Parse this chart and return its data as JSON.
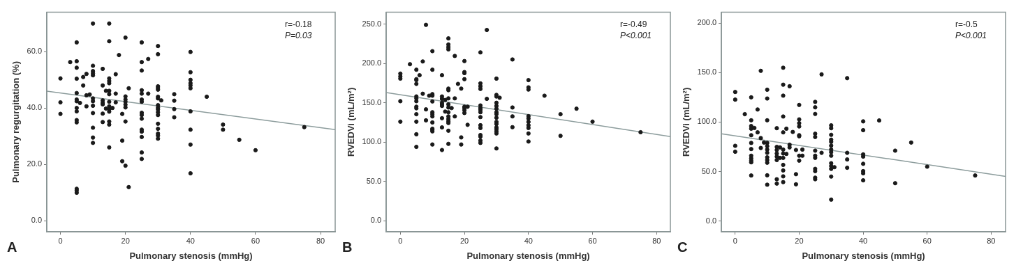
{
  "chart_data": [
    {
      "type": "scatter",
      "xlabel": "Pulmonary stenosis (mmHg)",
      "ylabel": "Pulmonary regurgitation (%)",
      "annotations": [
        "r=-0.18",
        "P=0.03",
        "A"
      ],
      "grid": false,
      "legend": false,
      "xlim": [
        -4.2,
        84.5
      ],
      "ylim": [
        -4,
        74
      ],
      "xticks": [
        0,
        20,
        40,
        60,
        80
      ],
      "yticks": [
        {
          "value": 0,
          "label": "0.0"
        },
        {
          "value": 20,
          "label": "20.0"
        },
        {
          "value": 40,
          "label": "40.0"
        },
        {
          "value": 60,
          "label": "60.0"
        }
      ],
      "series": [
        {
          "type": "scatter",
          "marker": "circle",
          "color": "#1a1a1a",
          "x": [
            0,
            0,
            0,
            3,
            5,
            5,
            5,
            5,
            5,
            5,
            5,
            5,
            5,
            5,
            5,
            5,
            5,
            5,
            6,
            7,
            7,
            8,
            8,
            8,
            9,
            10,
            10,
            10,
            10,
            10,
            10,
            10,
            10,
            10,
            10,
            10,
            10,
            13,
            13,
            13,
            13,
            13,
            13,
            13,
            14,
            14,
            15,
            15,
            15,
            15,
            15,
            15,
            15,
            15,
            15,
            15,
            15,
            15,
            15,
            15,
            16,
            17,
            17,
            17,
            18,
            19,
            19,
            19,
            20,
            20,
            20,
            20,
            20,
            20,
            20,
            20,
            21,
            21,
            25,
            25,
            25,
            25,
            25,
            25,
            25,
            25,
            25,
            25,
            25,
            25,
            25,
            25,
            25,
            27,
            27,
            30,
            30,
            30,
            30,
            30,
            30,
            30,
            30,
            30,
            30,
            30,
            30,
            30,
            30,
            30,
            30,
            30,
            31,
            35,
            35,
            35,
            35,
            40,
            40,
            40,
            40,
            40,
            40,
            40,
            40,
            40,
            40,
            45,
            50,
            50,
            55,
            60,
            75
          ],
          "values": [
            50.5,
            42,
            37.9,
            56.3,
            63.3,
            56.6,
            54.3,
            50.4,
            45.3,
            43,
            42.4,
            40,
            38.8,
            35.7,
            34.9,
            11.3,
            10.7,
            9.9,
            41.8,
            51,
            48,
            52.1,
            44.5,
            40.6,
            44.8,
            70,
            55,
            53.1,
            52.3,
            51.6,
            43.4,
            42.4,
            40.8,
            38.2,
            33,
            29.5,
            27.6,
            53.9,
            48,
            42.7,
            41.8,
            41.3,
            38,
            35,
            46.1,
            39.8,
            70,
            63.7,
            50.5,
            49.6,
            48.8,
            46.1,
            44.9,
            42.2,
            40.6,
            39.5,
            38.7,
            35.2,
            34.1,
            26,
            40,
            52,
            45.1,
            42,
            58.8,
            37.9,
            28.4,
            21.1,
            65,
            44.1,
            43,
            42.2,
            41.2,
            40.2,
            35.2,
            19.5,
            47,
            11.9,
            63.3,
            56.3,
            53.3,
            46.3,
            45.1,
            43,
            42.2,
            38.3,
            37.5,
            36.2,
            32.3,
            31.6,
            29.7,
            24.2,
            21.9,
            57.4,
            45.1,
            62,
            59.1,
            47.7,
            47.1,
            46.5,
            44,
            43.4,
            41,
            40.1,
            39.5,
            38.5,
            37.5,
            34.4,
            32.6,
            30.9,
            30.2,
            29.1,
            42.7,
            44.9,
            42.6,
            39.6,
            36.7,
            59.9,
            52.7,
            50,
            48.8,
            48,
            47,
            38.8,
            32.3,
            27,
            16.8,
            44,
            34.1,
            32.3,
            28.7,
            25,
            33.2
          ]
        },
        {
          "type": "line",
          "marker": "none",
          "color": "#8c9c9c",
          "x": [
            -4.2,
            84.5
          ],
          "values": [
            46,
            32.3
          ]
        }
      ]
    },
    {
      "type": "scatter",
      "xlabel": "Pulmonary stenosis (mmHg)",
      "ylabel": "RVEDVi (mL/m²)",
      "annotations": [
        "r=-0.49",
        "P<0.001",
        "B"
      ],
      "grid": false,
      "legend": false,
      "xlim": [
        -4.4,
        84.3
      ],
      "ylim": [
        -14,
        265
      ],
      "xticks": [
        0,
        20,
        40,
        60,
        80
      ],
      "yticks": [
        {
          "value": 0,
          "label": "0.0"
        },
        {
          "value": 50,
          "label": "50.0"
        },
        {
          "value": 100,
          "label": "100.0"
        },
        {
          "value": 150,
          "label": "150.0"
        },
        {
          "value": 200,
          "label": "200.0"
        },
        {
          "value": 250,
          "label": "250.0"
        }
      ],
      "series": [
        {
          "type": "scatter",
          "marker": "circle",
          "color": "#1a1a1a",
          "x": [
            0,
            0,
            0,
            0,
            0,
            3,
            5,
            5,
            5,
            5,
            5,
            5,
            5,
            5,
            5,
            5,
            5,
            5,
            5,
            6,
            7,
            7,
            8,
            8,
            8,
            9,
            10,
            10,
            10,
            10,
            10,
            10,
            10,
            10,
            10,
            10,
            10,
            10,
            10,
            13,
            13,
            13,
            13,
            13,
            13,
            13,
            13,
            13,
            14,
            14,
            15,
            15,
            15,
            15,
            15,
            15,
            15,
            15,
            15,
            15,
            15,
            15,
            15,
            15,
            15,
            15,
            16,
            17,
            17,
            17,
            18,
            19,
            19,
            19,
            20,
            20,
            20,
            20,
            20,
            20,
            20,
            20,
            21,
            21,
            25,
            25,
            25,
            25,
            25,
            25,
            25,
            25,
            25,
            25,
            25,
            25,
            25,
            25,
            25,
            27,
            27,
            30,
            30,
            30,
            30,
            30,
            30,
            30,
            30,
            30,
            30,
            30,
            30,
            30,
            30,
            30,
            30,
            31,
            35,
            35,
            35,
            35,
            40,
            40,
            40,
            40,
            40,
            40,
            40,
            40,
            40,
            40,
            45,
            50,
            50,
            55,
            60,
            75
          ],
          "values": [
            187,
            183.5,
            180.7,
            152,
            126,
            199,
            192,
            180,
            178.8,
            174,
            158,
            155.6,
            152,
            145,
            143,
            135.5,
            126,
            110,
            94,
            185,
            202.5,
            161.5,
            249,
            141.6,
            127.7,
            159,
            215.6,
            192,
            161,
            159,
            151.7,
            138,
            135.5,
            132.7,
            125,
            117,
            115.4,
            113.7,
            97,
            185,
            158,
            155,
            150,
            148,
            146,
            130.4,
            118.7,
            90,
            153.6,
            138.8,
            231.8,
            224,
            220.7,
            217.9,
            168,
            166,
            155.6,
            148,
            144,
            138,
            132.7,
            129.3,
            126.5,
            124.3,
            114.5,
            97.8,
            143.3,
            209.5,
            155.6,
            132.7,
            174,
            168,
            106,
            97,
            203,
            189,
            187.7,
            180,
            145,
            143.3,
            140.5,
            137,
            145,
            122,
            214,
            174.6,
            171,
            167.6,
            146.6,
            143.3,
            141,
            138,
            131.8,
            121.5,
            118,
            109,
            107,
            102,
            99,
            242.5,
            155,
            180.7,
            160,
            158,
            150,
            146,
            142.5,
            138,
            135.5,
            131,
            125.7,
            123,
            118.7,
            116.5,
            113.7,
            111,
            92,
            156.4,
            205,
            144,
            132.7,
            119,
            178.8,
            169.6,
            166.8,
            133,
            130,
            125.7,
            121.5,
            118,
            111,
            100.8,
            159,
            135.5,
            108,
            142.5,
            126,
            112.6
          ]
        },
        {
          "type": "line",
          "marker": "none",
          "color": "#8c9c9c",
          "x": [
            -4.4,
            84.3
          ],
          "values": [
            163,
            107
          ]
        }
      ]
    },
    {
      "type": "scatter",
      "xlabel": "Pulmonary stenosis (mmHg)",
      "ylabel": "RVEDVi (mL/m²)",
      "annotations": [
        "r=-0.5",
        "P<0.001",
        "C"
      ],
      "grid": false,
      "legend": false,
      "xlim": [
        -4.3,
        84.5
      ],
      "ylim": [
        -11,
        211
      ],
      "xticks": [
        0,
        20,
        40,
        60,
        80
      ],
      "yticks": [
        {
          "value": 0,
          "label": "0.0"
        },
        {
          "value": 50,
          "label": "50.0"
        },
        {
          "value": 100,
          "label": "100.0"
        },
        {
          "value": 150,
          "label": "150.0"
        },
        {
          "value": 200,
          "label": "200.0"
        }
      ],
      "series": [
        {
          "type": "scatter",
          "marker": "circle",
          "color": "#1a1a1a",
          "x": [
            0,
            0,
            0,
            0,
            3,
            5,
            5,
            5,
            5,
            5,
            5,
            5,
            5,
            5,
            5,
            5,
            5,
            6,
            7,
            7,
            8,
            8,
            8,
            9,
            10,
            10,
            10,
            10,
            10,
            10,
            10,
            10,
            10,
            10,
            10,
            10,
            13,
            13,
            13,
            13,
            13,
            13,
            13,
            13,
            14,
            14,
            15,
            15,
            15,
            15,
            15,
            15,
            15,
            15,
            15,
            15,
            15,
            15,
            16,
            16,
            17,
            17,
            17,
            18,
            19,
            19,
            19,
            20,
            20,
            20,
            20,
            20,
            20,
            20,
            20,
            21,
            21,
            25,
            25,
            25,
            25,
            25,
            25,
            25,
            25,
            25,
            25,
            25,
            25,
            27,
            27,
            30,
            30,
            30,
            30,
            30,
            30,
            30,
            30,
            30,
            30,
            30,
            30,
            30,
            30,
            31,
            35,
            35,
            35,
            35,
            40,
            40,
            40,
            40,
            40,
            40,
            40,
            40,
            45,
            50,
            50,
            55,
            60,
            75
          ],
          "values": [
            130.4,
            122.7,
            76,
            70,
            108,
            125,
            101.8,
            96,
            93.3,
            86.7,
            78.9,
            72.7,
            66,
            63.3,
            61,
            59.3,
            46,
            94,
            112.7,
            89.6,
            151.8,
            83.8,
            73.8,
            79.3,
            132.7,
            123.8,
            101.8,
            78.9,
            75.6,
            72.2,
            68.9,
            64.4,
            61.6,
            58.9,
            46.2,
            36.7,
            93.8,
            74.9,
            71.8,
            68.2,
            65.1,
            61.6,
            42.2,
            37.8,
            74.4,
            63.8,
            154.9,
            137.8,
            126.7,
            105.6,
            89.6,
            72.2,
            68.2,
            63.8,
            56.7,
            51.1,
            45.1,
            39.3,
            93.3,
            67.8,
            136.2,
            77.1,
            74.4,
            90,
            71.8,
            47.3,
            37.1,
            117.3,
            102.7,
            98.9,
            95.6,
            86.7,
            85.6,
            66,
            61,
            72.2,
            66,
            120.4,
            114.9,
            108.2,
            88.2,
            84.9,
            71.1,
            66,
            63.8,
            52.7,
            50.4,
            43.8,
            42.2,
            148.2,
            68.9,
            96.7,
            93.8,
            87.1,
            82.2,
            80,
            76.2,
            72.2,
            69.6,
            66,
            58.4,
            55.6,
            52.7,
            44.9,
            21.6,
            54.4,
            144.4,
            68.9,
            62.2,
            53.8,
            100.7,
            91.8,
            67.3,
            65.1,
            57.8,
            50.4,
            48.2,
            41.1,
            101.6,
            71.1,
            38.2,
            79.3,
            54.9,
            46
          ]
        },
        {
          "type": "line",
          "marker": "none",
          "color": "#8c9c9c",
          "x": [
            -4.3,
            84.5
          ],
          "values": [
            88.2,
            45.1
          ]
        }
      ]
    }
  ]
}
